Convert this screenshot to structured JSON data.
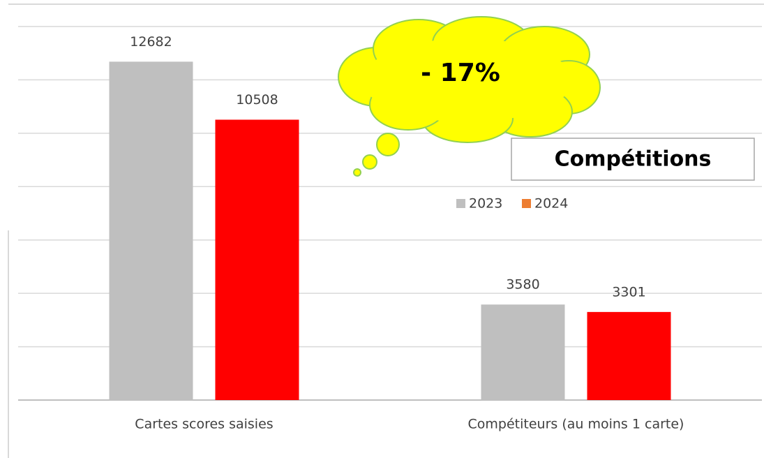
{
  "chart_data": {
    "type": "bar",
    "title": "Compétitions",
    "annotation": "- 17%",
    "categories": [
      "Cartes scores saisies",
      "Compétiteurs (au moins 1 carte)"
    ],
    "series": [
      {
        "name": "2023",
        "color": "#bfbfbf",
        "values": [
          12682,
          3580
        ]
      },
      {
        "name": "2024",
        "color": "#ff0000",
        "legend_color": "#ed7d31",
        "values": [
          10508,
          3301
        ]
      }
    ],
    "ylim": [
      0,
      14000
    ],
    "yticks": [
      0,
      2000,
      4000,
      6000,
      8000,
      10000,
      12000,
      14000
    ],
    "grid": true
  }
}
